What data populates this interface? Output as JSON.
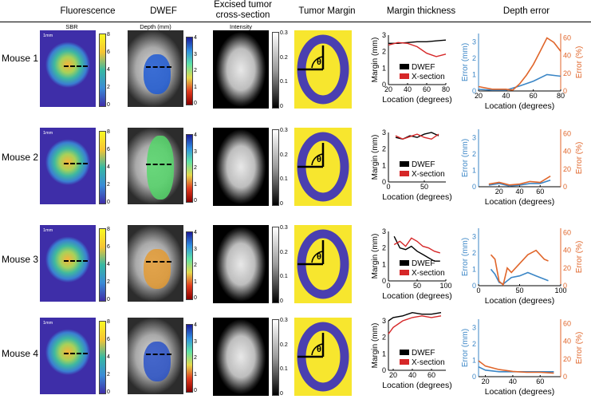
{
  "columns": {
    "fluorescence": "Fluorescence",
    "dwef": "DWEF",
    "excised": "Excised tumor cross-section",
    "margin": "Tumor Margin",
    "thickness": "Margin thickness",
    "depth_error": "Depth error"
  },
  "subheaders": {
    "fluorescence": "SBR",
    "dwef": "Depth (mm)",
    "excised": "Intensity"
  },
  "rows": [
    "Mouse 1",
    "Mouse 2",
    "Mouse 3",
    "Mouse 4"
  ],
  "colorbars": {
    "sbr_ticks": [
      "8",
      "6",
      "4",
      "2",
      "0"
    ],
    "depth_ticks": [
      "4",
      "3",
      "2",
      "1",
      "0"
    ],
    "intensity_ticks": [
      "0.3",
      "0.2",
      "0.1",
      "0"
    ]
  },
  "scale_label": "1mm",
  "theta": "θ",
  "colors": {
    "dwef": "#000000",
    "xsection": "#d62728",
    "error_mm": "#3b86c6",
    "error_pct": "#e0662b",
    "margin_blue": "#4a3fb0",
    "margin_bg": "#f7e62e"
  },
  "chart_data": [
    {
      "type": "line",
      "name": "Mouse 1 margin thickness",
      "xlabel": "Location (degrees)",
      "ylabel": "Margin (mm)",
      "xlim": [
        20,
        80
      ],
      "ylim": [
        0,
        3
      ],
      "xticks": [
        "20",
        "40",
        "60",
        "80"
      ],
      "yticks": [
        "0",
        "1",
        "2",
        "3"
      ],
      "legend": [
        "DWEF",
        "X-section"
      ],
      "series": [
        {
          "name": "DWEF",
          "x": [
            20,
            30,
            40,
            50,
            60,
            70,
            80
          ],
          "y": [
            2.5,
            2.5,
            2.55,
            2.6,
            2.6,
            2.65,
            2.7
          ]
        },
        {
          "name": "X-section",
          "x": [
            20,
            30,
            40,
            50,
            60,
            70,
            80
          ],
          "y": [
            2.4,
            2.55,
            2.5,
            2.3,
            1.9,
            1.7,
            1.85
          ]
        }
      ]
    },
    {
      "type": "line",
      "name": "Mouse 2 margin thickness",
      "xlabel": "Location (degrees)",
      "ylabel": "Margin (mm)",
      "xlim": [
        0,
        80
      ],
      "ylim": [
        0,
        3
      ],
      "xticks": [
        "0",
        "50"
      ],
      "yticks": [
        "0",
        "1",
        "2",
        "3"
      ],
      "legend": [
        "DWEF",
        "X-section"
      ],
      "series": [
        {
          "name": "DWEF",
          "x": [
            10,
            20,
            30,
            40,
            50,
            60,
            70
          ],
          "y": [
            2.7,
            2.6,
            2.8,
            2.7,
            2.9,
            3.0,
            2.8
          ]
        },
        {
          "name": "X-section",
          "x": [
            10,
            20,
            30,
            40,
            50,
            60,
            70
          ],
          "y": [
            2.8,
            2.6,
            2.75,
            2.9,
            2.7,
            2.6,
            2.9
          ]
        }
      ]
    },
    {
      "type": "line",
      "name": "Mouse 3 margin thickness",
      "xlabel": "Location (degrees)",
      "ylabel": "Margin (mm)",
      "xlim": [
        0,
        100
      ],
      "ylim": [
        0,
        3
      ],
      "xticks": [
        "0",
        "50",
        "100"
      ],
      "yticks": [
        "0",
        "1",
        "2",
        "3"
      ],
      "legend": [
        "DWEF",
        "X-section"
      ],
      "series": [
        {
          "name": "DWEF",
          "x": [
            10,
            20,
            30,
            40,
            50,
            60,
            70,
            80,
            90
          ],
          "y": [
            2.7,
            2.0,
            1.9,
            2.1,
            1.8,
            1.6,
            1.4,
            1.2,
            1.2
          ]
        },
        {
          "name": "X-section",
          "x": [
            10,
            20,
            30,
            40,
            50,
            60,
            70,
            80,
            90
          ],
          "y": [
            2.2,
            2.4,
            2.1,
            2.6,
            2.4,
            2.1,
            2.0,
            1.8,
            1.7
          ]
        }
      ]
    },
    {
      "type": "line",
      "name": "Mouse 4 margin thickness",
      "xlabel": "Location (degrees)",
      "ylabel": "Margin (mm)",
      "xlim": [
        15,
        75
      ],
      "ylim": [
        0,
        3
      ],
      "xticks": [
        "20",
        "40",
        "60"
      ],
      "yticks": [
        "0",
        "1",
        "2",
        "3"
      ],
      "legend": [
        "DWEF",
        "X-section"
      ],
      "series": [
        {
          "name": "DWEF",
          "x": [
            15,
            20,
            30,
            40,
            50,
            60,
            70
          ],
          "y": [
            3.0,
            3.2,
            3.3,
            3.5,
            3.4,
            3.4,
            3.5
          ]
        },
        {
          "name": "X-section",
          "x": [
            15,
            20,
            30,
            40,
            50,
            60,
            70
          ],
          "y": [
            2.2,
            2.6,
            3.0,
            3.2,
            3.3,
            3.2,
            3.3
          ]
        }
      ]
    },
    {
      "type": "line",
      "name": "Mouse 1 depth error",
      "xlabel": "Location (degrees)",
      "ylabel": "Error (mm)",
      "y2label": "Error (%)",
      "xlim": [
        20,
        80
      ],
      "ylim": [
        0,
        3.5
      ],
      "y2lim": [
        0,
        65
      ],
      "xticks": [
        "20",
        "40",
        "60",
        "80"
      ],
      "yticks": [
        "0",
        "1",
        "2",
        "3"
      ],
      "y2ticks": [
        "0",
        "20",
        "40",
        "60"
      ],
      "series": [
        {
          "name": "Error (mm)",
          "axis": "left",
          "x": [
            20,
            30,
            40,
            50,
            60,
            70,
            80
          ],
          "y": [
            0.1,
            0.05,
            0.05,
            0.3,
            0.6,
            1.0,
            0.9
          ]
        },
        {
          "name": "Error (%)",
          "axis": "right",
          "x": [
            20,
            30,
            40,
            45,
            50,
            55,
            60,
            65,
            70,
            75,
            80
          ],
          "y": [
            5,
            2,
            2,
            1,
            8,
            18,
            30,
            45,
            60,
            55,
            45
          ]
        }
      ]
    },
    {
      "type": "line",
      "name": "Mouse 2 depth error",
      "xlabel": "Location (degrees)",
      "ylabel": "Error (mm)",
      "y2label": "Error (%)",
      "xlim": [
        0,
        80
      ],
      "ylim": [
        0,
        3.5
      ],
      "y2lim": [
        0,
        65
      ],
      "xticks": [
        "20",
        "40",
        "60"
      ],
      "yticks": [
        "0",
        "1",
        "2",
        "3"
      ],
      "y2ticks": [
        "0",
        "20",
        "40",
        "60"
      ],
      "series": [
        {
          "name": "Error (mm)",
          "axis": "left",
          "x": [
            10,
            20,
            30,
            40,
            50,
            60,
            70
          ],
          "y": [
            0.1,
            0.2,
            0.05,
            0.1,
            0.2,
            0.2,
            0.4
          ]
        },
        {
          "name": "Error (%)",
          "axis": "right",
          "x": [
            10,
            20,
            30,
            40,
            50,
            60,
            70
          ],
          "y": [
            3,
            5,
            2,
            3,
            6,
            5,
            12
          ]
        }
      ]
    },
    {
      "type": "line",
      "name": "Mouse 3 depth error",
      "xlabel": "Location (degrees)",
      "ylabel": "Error (mm)",
      "y2label": "Error (%)",
      "xlim": [
        0,
        100
      ],
      "ylim": [
        0,
        3.5
      ],
      "y2lim": [
        0,
        65
      ],
      "xticks": [
        "0",
        "50",
        "100"
      ],
      "yticks": [
        "0",
        "1",
        "2",
        "3"
      ],
      "y2ticks": [
        "0",
        "20",
        "40",
        "60"
      ],
      "series": [
        {
          "name": "Error (mm)",
          "axis": "left",
          "x": [
            15,
            20,
            25,
            30,
            40,
            50,
            60,
            70,
            80,
            85
          ],
          "y": [
            1.0,
            0.7,
            0.2,
            0.1,
            0.5,
            0.6,
            0.8,
            0.6,
            0.4,
            0.3
          ]
        },
        {
          "name": "Error (%)",
          "axis": "right",
          "x": [
            15,
            20,
            25,
            30,
            35,
            40,
            50,
            60,
            70,
            80,
            85
          ],
          "y": [
            35,
            30,
            5,
            1,
            20,
            15,
            25,
            35,
            40,
            30,
            28
          ]
        }
      ]
    },
    {
      "type": "line",
      "name": "Mouse 4 depth error",
      "xlabel": "Location (degrees)",
      "ylabel": "Error (mm)",
      "y2label": "Error (%)",
      "xlim": [
        15,
        75
      ],
      "ylim": [
        0,
        3.5
      ],
      "y2lim": [
        0,
        65
      ],
      "xticks": [
        "20",
        "40",
        "60"
      ],
      "yticks": [
        "0",
        "1",
        "2",
        "3"
      ],
      "y2ticks": [
        "0",
        "20",
        "40",
        "60"
      ],
      "series": [
        {
          "name": "Error (mm)",
          "axis": "left",
          "x": [
            15,
            20,
            30,
            40,
            50,
            60,
            70
          ],
          "y": [
            0.6,
            0.4,
            0.3,
            0.3,
            0.3,
            0.3,
            0.3
          ]
        },
        {
          "name": "Error (%)",
          "axis": "right",
          "x": [
            15,
            20,
            30,
            40,
            50,
            60,
            70
          ],
          "y": [
            18,
            12,
            8,
            6,
            5,
            5,
            4
          ]
        }
      ]
    }
  ]
}
